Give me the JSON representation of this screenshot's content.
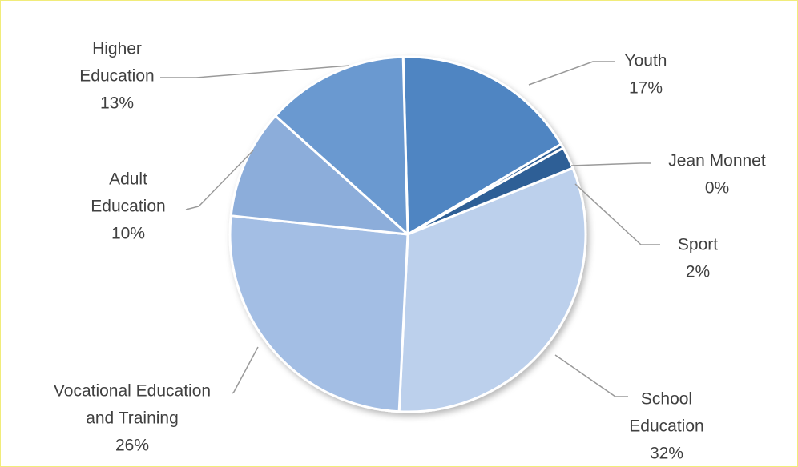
{
  "chart_data": {
    "type": "pie",
    "title": "",
    "slices": [
      {
        "name": "Youth",
        "value": 17,
        "label_lines": [
          "Youth"
        ],
        "pct": "17%",
        "color": "#4f85c2"
      },
      {
        "name": "Jean Monnet",
        "value": 0.4,
        "label_lines": [
          "Jean Monnet"
        ],
        "pct": "0%",
        "color": "#2a5a91"
      },
      {
        "name": "Sport",
        "value": 2,
        "label_lines": [
          "Sport"
        ],
        "pct": "2%",
        "color": "#2f5f96"
      },
      {
        "name": "School Education",
        "value": 32,
        "label_lines": [
          "School",
          "Education"
        ],
        "pct": "32%",
        "color": "#bcd0ec"
      },
      {
        "name": "Vocational Education and Training",
        "value": 26,
        "label_lines": [
          "Vocational Education",
          "and Training"
        ],
        "pct": "26%",
        "color": "#a3bee4"
      },
      {
        "name": "Adult Education",
        "value": 10,
        "label_lines": [
          "Adult",
          "Education"
        ],
        "pct": "10%",
        "color": "#8cadda"
      },
      {
        "name": "Higher Education",
        "value": 13,
        "label_lines": [
          "Higher",
          "Education"
        ],
        "pct": "13%",
        "color": "#6a99d0"
      }
    ],
    "legend": "none",
    "data_labels": "outside with leader lines"
  }
}
